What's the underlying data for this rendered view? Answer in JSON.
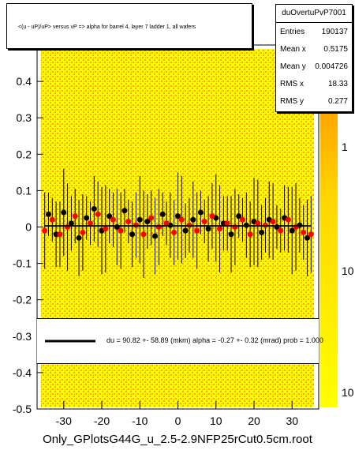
{
  "chart_data": {
    "type": "scatter",
    "title": "<(u - uP)/uP> versus   vP => alpha for barrel 4, layer 7 ladder 1, all wafers",
    "xlim": [
      -37,
      37
    ],
    "ylim": [
      -0.5,
      0.5
    ],
    "x_ticks": [
      "-30",
      "-20",
      "-10",
      "0",
      "10",
      "20",
      "30"
    ],
    "y_ticks": [
      "-0.5",
      "-0.4",
      "-0.3",
      "-0.2",
      "-0.1",
      "0",
      "0.1",
      "0.2",
      "0.3",
      "0.4"
    ],
    "y_ticks_extra": "0.5",
    "z_ticks": [
      "1",
      "10",
      "10"
    ],
    "colors": {
      "fit_line": "#000000",
      "profile_red": "#ff0000",
      "profile_black": "#000000",
      "heat_low": "#ffff00",
      "heat_mid": "#ffa500"
    },
    "stats": {
      "name": "duOvertuPvP7001",
      "rows": [
        {
          "label": "Entries",
          "value": "190137"
        },
        {
          "label": "Mean x",
          "value": "0.5175"
        },
        {
          "label": "Mean y",
          "value": "0.004726"
        },
        {
          "label": "RMS x",
          "value": "18.33"
        },
        {
          "label": "RMS y",
          "value": "0.277"
        }
      ]
    },
    "fit_legend": "du =    90.82 +- 58.89 (mkm) alpha =   -0.27 +-  0.32 (mrad) prob = 1.000",
    "fit_line": {
      "x": [
        -35,
        35
      ],
      "y": [
        0.003,
        0.003
      ]
    },
    "series": [
      {
        "name": "",
        "x": [
          -34,
          -32,
          -30,
          -28,
          -26,
          -24,
          -22,
          -20,
          -18,
          -16,
          -14,
          -12,
          -10,
          -8,
          -6,
          -4,
          -2,
          0,
          2,
          4,
          6,
          8,
          10,
          12,
          14,
          16,
          18,
          20,
          22,
          24,
          26,
          28,
          30,
          32,
          34
        ],
        "y": [
          0.035,
          -0.02,
          0.04,
          0.01,
          -0.03,
          0.025,
          0.05,
          -0.01,
          0.03,
          0.0,
          0.045,
          -0.02,
          0.02,
          0.015,
          -0.025,
          0.035,
          0.005,
          0.03,
          -0.01,
          0.02,
          0.04,
          -0.005,
          0.025,
          0.01,
          -0.02,
          0.03,
          0.005,
          0.015,
          -0.015,
          0.02,
          0.0,
          0.025,
          -0.01,
          0.005,
          -0.03
        ]
      },
      {
        "name": "",
        "x": [
          -35,
          -33,
          -31,
          -29,
          -27,
          -25,
          -23,
          -21,
          -19,
          -17,
          -15,
          -13,
          -11,
          -9,
          -7,
          -5,
          -3,
          -1,
          1,
          3,
          5,
          7,
          9,
          11,
          13,
          15,
          17,
          19,
          21,
          23,
          25,
          27,
          29,
          31,
          33,
          35
        ],
        "y": [
          -0.01,
          0.02,
          -0.02,
          0.0,
          0.03,
          -0.015,
          0.01,
          0.035,
          -0.005,
          0.02,
          -0.01,
          0.015,
          0.005,
          -0.02,
          0.025,
          0.0,
          0.01,
          -0.015,
          0.02,
          0.005,
          -0.01,
          0.015,
          0.03,
          -0.005,
          0.01,
          0.0,
          0.02,
          -0.02,
          0.01,
          0.005,
          0.015,
          -0.01,
          0.02,
          0.0,
          -0.015,
          -0.02
        ]
      }
    ]
  },
  "footer_text": "Only_GPlotsG44G_u_2.5-2.9NFP25rCut0.5cm.root"
}
